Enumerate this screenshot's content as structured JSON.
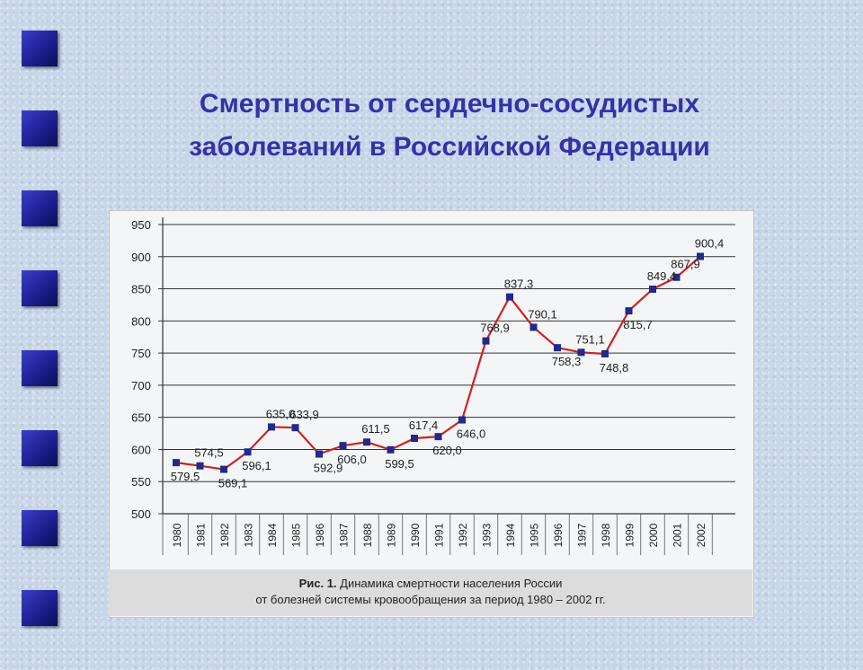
{
  "slide": {
    "title_line1": "Смертность от сердечно-сосудистых",
    "title_line2": "заболеваний в Российской Федерации"
  },
  "figure": {
    "caption_prefix": "Рис. 1.",
    "caption_line1": " Динамика смертности населения России",
    "caption_line2": "от болезней системы кровообращения за период 1980 – 2002 гг."
  },
  "colors": {
    "line": "#d02020",
    "marker": "#1f2a8a",
    "title": "#3333a8",
    "bullet": "#2a2fae"
  },
  "chart_data": {
    "type": "line",
    "categories": [
      "1980",
      "1981",
      "1982",
      "1983",
      "1984",
      "1985",
      "1986",
      "1987",
      "1988",
      "1989",
      "1990",
      "1991",
      "1992",
      "1993",
      "1994",
      "1995",
      "1996",
      "1997",
      "1998",
      "1999",
      "2000",
      "2001",
      "2002"
    ],
    "values": [
      579.5,
      574.5,
      569.1,
      596.1,
      635.0,
      633.9,
      592.9,
      606.0,
      611.5,
      599.5,
      617.4,
      620.0,
      646.0,
      768.9,
      837.3,
      790.1,
      758.3,
      751.1,
      748.8,
      815.7,
      849.4,
      867.9,
      900.4
    ],
    "data_labels": [
      "579,5",
      "574,5",
      "569,1",
      "596,1",
      "635,0",
      "633,9",
      "592,9",
      "606,0",
      "611,5",
      "599,5",
      "617,4",
      "620,0",
      "646,0",
      "768,9",
      "837,3",
      "790,1",
      "758,3",
      "751,1",
      "748,8",
      "815,7",
      "849,4",
      "867,9",
      "900,4"
    ],
    "label_pos": [
      "below",
      "above",
      "below",
      "below",
      "above",
      "above",
      "below",
      "below",
      "above",
      "below",
      "above",
      "below",
      "below",
      "above",
      "above",
      "above",
      "below",
      "above",
      "below",
      "below",
      "above",
      "above",
      "above"
    ],
    "ylim": [
      500,
      950
    ],
    "yticks": [
      500,
      550,
      600,
      650,
      700,
      750,
      800,
      850,
      900,
      950
    ],
    "grid": true,
    "legend": "none"
  }
}
